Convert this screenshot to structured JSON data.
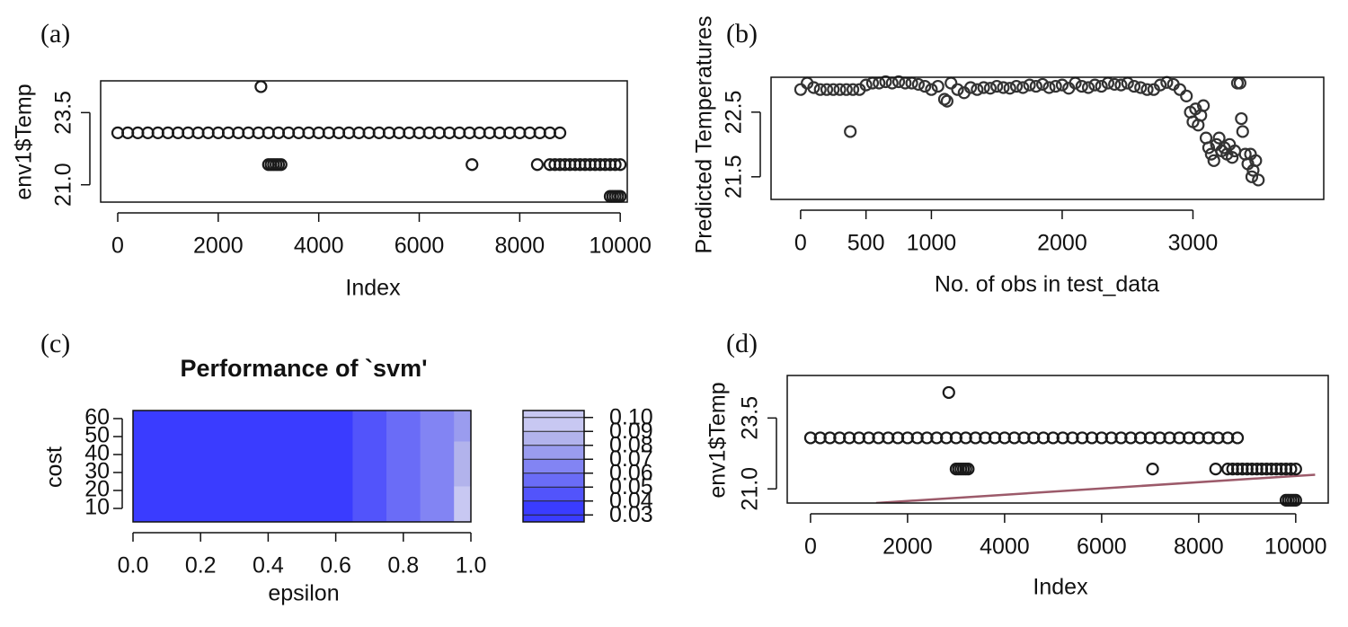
{
  "chart_data": [
    {
      "type": "scatter",
      "label": "(a)",
      "xlabel": "Index",
      "ylabel": "env1$Temp",
      "color": "#1a1a1a",
      "xlim": [
        -340,
        10140
      ],
      "ylim": [
        20.4,
        24.6
      ],
      "xticks": [
        0,
        2000,
        4000,
        6000,
        8000,
        10000
      ],
      "yticks": [
        {
          "value": 21,
          "label": "21.0"
        },
        23.5
      ],
      "x": [
        0,
        200,
        400,
        600,
        800,
        1000,
        1200,
        1400,
        1600,
        1800,
        2000,
        2200,
        2400,
        2600,
        2800,
        3000,
        3200,
        3400,
        3600,
        3800,
        4000,
        4200,
        4400,
        4600,
        4800,
        5000,
        5200,
        5400,
        5600,
        5800,
        6000,
        6200,
        6400,
        6600,
        6800,
        7000,
        7200,
        7400,
        7600,
        7800,
        8000,
        8200,
        8400,
        8600,
        8800,
        3000,
        3050,
        3100,
        3150,
        3200,
        3250,
        2850,
        7050,
        8350,
        8600,
        8700,
        8800,
        8900,
        9000,
        9100,
        9200,
        9300,
        9400,
        9500,
        9600,
        9700,
        9800,
        9900,
        10000,
        9800,
        9850,
        9900,
        9950,
        10000
      ],
      "y": [
        22.8,
        22.8,
        22.8,
        22.8,
        22.8,
        22.8,
        22.8,
        22.8,
        22.8,
        22.8,
        22.8,
        22.8,
        22.8,
        22.8,
        22.8,
        22.8,
        22.8,
        22.8,
        22.8,
        22.8,
        22.8,
        22.8,
        22.8,
        22.8,
        22.8,
        22.8,
        22.8,
        22.8,
        22.8,
        22.8,
        22.8,
        22.8,
        22.8,
        22.8,
        22.8,
        22.8,
        22.8,
        22.8,
        22.8,
        22.8,
        22.8,
        22.8,
        22.8,
        22.8,
        22.8,
        21.7,
        21.7,
        21.7,
        21.7,
        21.7,
        21.7,
        24.4,
        21.7,
        21.7,
        21.7,
        21.7,
        21.7,
        21.7,
        21.7,
        21.7,
        21.7,
        21.7,
        21.7,
        21.7,
        21.7,
        21.7,
        21.7,
        21.7,
        21.7,
        20.6,
        20.6,
        20.6,
        20.6,
        20.6
      ]
    },
    {
      "type": "scatter",
      "label": "(b)",
      "xlabel": "No. of obs in test_data",
      "ylabel": "Predicted Temperatures",
      "color": "#333333",
      "xlim": [
        -226,
        4000
      ],
      "ylim": [
        21.15,
        23.04
      ],
      "xticks": [
        0,
        500,
        1000,
        2000,
        3000
      ],
      "yticks": [
        21.5,
        22.5
      ],
      "x": [
        0,
        50,
        100,
        150,
        200,
        250,
        300,
        350,
        400,
        450,
        500,
        550,
        600,
        650,
        700,
        750,
        800,
        850,
        900,
        950,
        1000,
        1050,
        1100,
        1120,
        1150,
        1200,
        1250,
        1300,
        1350,
        1400,
        1450,
        1500,
        1550,
        1600,
        1650,
        1700,
        1750,
        1800,
        1850,
        1900,
        1950,
        2000,
        2050,
        2100,
        2150,
        2200,
        2250,
        2300,
        2350,
        2400,
        2450,
        2500,
        2550,
        2600,
        2650,
        2700,
        2750,
        2800,
        2850,
        2900,
        2950,
        2980,
        3000,
        3020,
        3040,
        3060,
        3080,
        3100,
        3120,
        3140,
        3160,
        3180,
        3200,
        3220,
        3240,
        3260,
        3280,
        3300,
        3320,
        3340,
        3360,
        3370,
        3380,
        3400,
        3420,
        3440,
        3450,
        3460,
        3480,
        3500,
        380
      ],
      "y": [
        22.85,
        22.95,
        22.88,
        22.85,
        22.85,
        22.85,
        22.85,
        22.85,
        22.85,
        22.85,
        22.92,
        22.95,
        22.95,
        22.97,
        22.95,
        22.97,
        22.95,
        22.95,
        22.93,
        22.9,
        22.85,
        22.9,
        22.7,
        22.67,
        22.95,
        22.85,
        22.8,
        22.88,
        22.85,
        22.88,
        22.87,
        22.9,
        22.88,
        22.87,
        22.9,
        22.88,
        22.92,
        22.9,
        22.93,
        22.88,
        22.9,
        22.92,
        22.87,
        22.95,
        22.9,
        22.88,
        22.92,
        22.9,
        22.95,
        22.93,
        22.92,
        22.95,
        22.9,
        22.88,
        22.85,
        22.85,
        22.92,
        22.96,
        22.93,
        22.85,
        22.75,
        22.5,
        22.35,
        22.55,
        22.3,
        22.45,
        22.6,
        22.1,
        21.95,
        21.85,
        21.75,
        22.0,
        22.1,
        21.9,
        21.95,
        21.85,
        22.0,
        21.8,
        21.9,
        22.95,
        22.95,
        22.4,
        22.2,
        21.85,
        21.7,
        21.85,
        21.5,
        21.6,
        21.75,
        21.45,
        22.2
      ]
    },
    {
      "type": "contour",
      "label": "(c)",
      "title": "Performance of `svm'",
      "xlabel": "epsilon",
      "ylabel": "cost",
      "xlim": [
        0,
        1
      ],
      "ylim": [
        2.5,
        64.5
      ],
      "xticks": [
        {
          "value": 0,
          "label": "0.0"
        },
        0.2,
        0.4,
        0.6,
        0.8,
        {
          "value": 1,
          "label": "1.0"
        }
      ],
      "yticks": [
        10,
        20,
        30,
        40,
        50,
        60
      ],
      "x": [
        0,
        0.1,
        0.2,
        0.3,
        0.4,
        0.5,
        0.6,
        0.7,
        0.8,
        0.9,
        1.0
      ],
      "y": [
        10,
        35,
        60
      ],
      "z": [
        [
          0.03,
          0.03,
          0.03,
          0.03,
          0.03,
          0.03,
          0.035,
          0.04,
          0.05,
          0.065,
          0.1
        ],
        [
          0.03,
          0.03,
          0.03,
          0.03,
          0.03,
          0.03,
          0.035,
          0.04,
          0.05,
          0.06,
          0.08
        ],
        [
          0.03,
          0.03,
          0.03,
          0.03,
          0.03,
          0.03,
          0.035,
          0.04,
          0.05,
          0.06,
          0.075
        ]
      ],
      "zlim": [
        0.025,
        0.105
      ],
      "levels": [
        0.03,
        0.04,
        0.05,
        0.06,
        0.07,
        0.08,
        0.09,
        0.1
      ],
      "colors": [
        "#3a3cff",
        "#5254fb",
        "#6a6cf7",
        "#8284f3",
        "#9a9cef",
        "#b2b3ec",
        "#c8c8f2"
      ],
      "zticks": [
        0.03,
        0.04,
        0.05,
        0.06,
        0.07,
        0.08,
        0.09,
        {
          "value": 0.1,
          "label": "0.10"
        }
      ]
    },
    {
      "type": "scatter",
      "label": "(d)",
      "xlabel": "Index",
      "ylabel": "env1$Temp",
      "color": "#1a1a1a",
      "xlim": [
        -480,
        10670
      ],
      "ylim": [
        20.5,
        25.0
      ],
      "xticks": [
        0,
        2000,
        4000,
        6000,
        8000,
        10000
      ],
      "yticks": [
        {
          "value": 21,
          "label": "21.0"
        },
        23.5
      ],
      "lines": [
        {
          "x": [
            1350,
            10400
          ],
          "y": [
            20.5,
            21.5
          ],
          "color": "#9c5a6a"
        }
      ],
      "x": [
        0,
        200,
        400,
        600,
        800,
        1000,
        1200,
        1400,
        1600,
        1800,
        2000,
        2200,
        2400,
        2600,
        2800,
        3000,
        3200,
        3400,
        3600,
        3800,
        4000,
        4200,
        4400,
        4600,
        4800,
        5000,
        5200,
        5400,
        5600,
        5800,
        6000,
        6200,
        6400,
        6600,
        6800,
        7000,
        7200,
        7400,
        7600,
        7800,
        8000,
        8200,
        8400,
        8600,
        8800,
        3000,
        3050,
        3100,
        3150,
        3200,
        3250,
        2850,
        7050,
        8350,
        8600,
        8700,
        8800,
        8900,
        9000,
        9100,
        9200,
        9300,
        9400,
        9500,
        9600,
        9700,
        9800,
        9900,
        10000,
        9800,
        9850,
        9900,
        9950,
        10000
      ],
      "y": [
        22.8,
        22.8,
        22.8,
        22.8,
        22.8,
        22.8,
        22.8,
        22.8,
        22.8,
        22.8,
        22.8,
        22.8,
        22.8,
        22.8,
        22.8,
        22.8,
        22.8,
        22.8,
        22.8,
        22.8,
        22.8,
        22.8,
        22.8,
        22.8,
        22.8,
        22.8,
        22.8,
        22.8,
        22.8,
        22.8,
        22.8,
        22.8,
        22.8,
        22.8,
        22.8,
        22.8,
        22.8,
        22.8,
        22.8,
        22.8,
        22.8,
        22.8,
        22.8,
        22.8,
        22.8,
        21.7,
        21.7,
        21.7,
        21.7,
        21.7,
        21.7,
        24.4,
        21.7,
        21.7,
        21.7,
        21.7,
        21.7,
        21.7,
        21.7,
        21.7,
        21.7,
        21.7,
        21.7,
        21.7,
        21.7,
        21.7,
        21.7,
        21.7,
        21.7,
        20.6,
        20.6,
        20.6,
        20.6,
        20.6
      ]
    }
  ]
}
